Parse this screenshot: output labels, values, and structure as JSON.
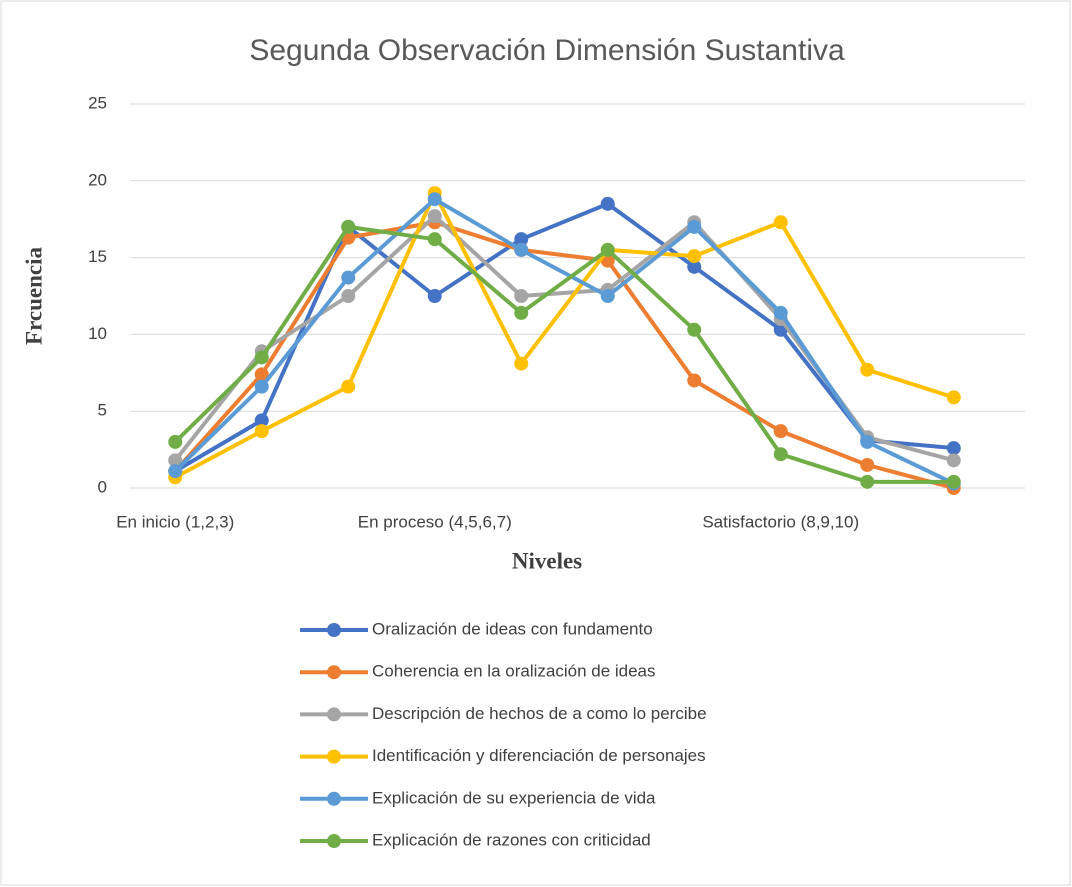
{
  "chart_data": {
    "type": "line",
    "title": "Segunda Observación Dimensión Sustantiva",
    "x_label": "Niveles",
    "y_label": "Frcuencia",
    "categories": [
      "En inicio (1,2,3)",
      null,
      null,
      "En proceso (4,5,6,7)",
      null,
      null,
      null,
      "Satisfactorio (8,9,10)",
      null,
      null
    ],
    "ylim": [
      0,
      25
    ],
    "yticks": [
      0,
      5,
      10,
      15,
      20,
      25
    ],
    "grid": true,
    "legend": "bottom",
    "series": [
      {
        "name": "Oralización de ideas con fundamento",
        "color": "#4472c4",
        "values": [
          1.1,
          4.4,
          17.0,
          12.5,
          16.2,
          18.5,
          14.4,
          10.3,
          3.1,
          2.6
        ]
      },
      {
        "name": "Coherencia en la oralización de ideas",
        "color": "#ed7d31",
        "values": [
          1.1,
          7.4,
          16.3,
          17.3,
          15.5,
          14.8,
          7.0,
          3.7,
          1.5,
          0
        ]
      },
      {
        "name": "Descripción de hechos de a como lo percibe",
        "color": "#a5a5a5",
        "values": [
          1.8,
          8.9,
          12.5,
          17.7,
          12.5,
          12.9,
          17.3,
          11.0,
          3.3,
          1.8
        ]
      },
      {
        "name": "Identificación y diferenciación de personajes",
        "color": "#ffc000",
        "values": [
          0.7,
          3.7,
          6.6,
          19.2,
          8.1,
          15.5,
          15.1,
          17.3,
          7.7,
          5.9
        ]
      },
      {
        "name": "Explicación de su experiencia de vida",
        "color": "#5b9bd5",
        "values": [
          1.1,
          6.6,
          13.7,
          18.8,
          15.5,
          12.5,
          17.0,
          11.4,
          3.0,
          0.3
        ]
      },
      {
        "name": "Explicación de razones con criticidad",
        "color": "#70ad47",
        "values": [
          3.0,
          8.5,
          17.0,
          16.2,
          11.4,
          15.5,
          10.3,
          2.2,
          0.4,
          0.4
        ]
      }
    ]
  }
}
